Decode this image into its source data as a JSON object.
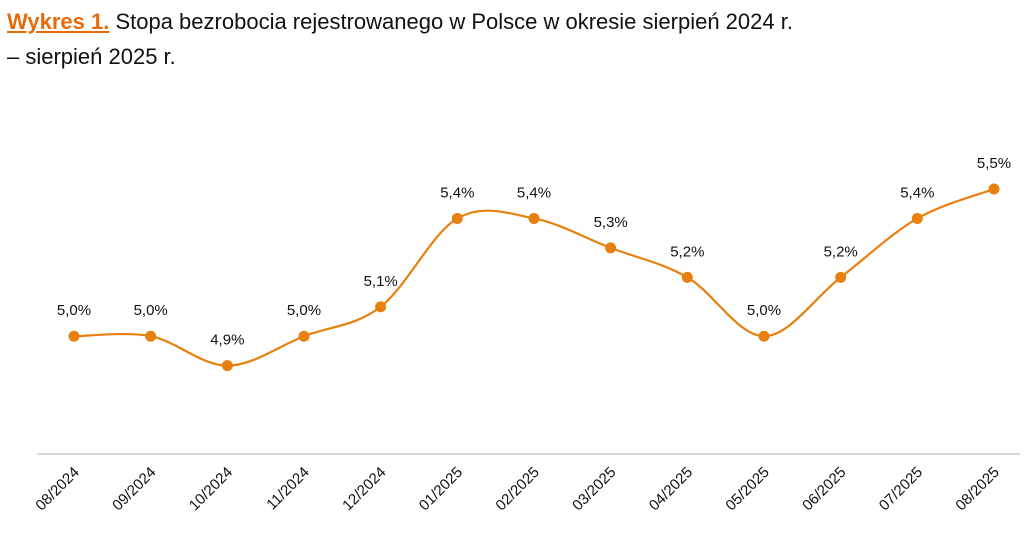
{
  "title": {
    "lead": "Wykres 1.",
    "line1": " Stopa bezrobocia rejestrowanego w Polsce w okresie sierpień 2024 r.",
    "line2": "– sierpień 2025 r."
  },
  "colors": {
    "series": "#e8800f",
    "accent": "#e46c0a",
    "axis": "#d9d9d9"
  },
  "chart_data": {
    "type": "line",
    "title": "Stopa bezrobocia rejestrowanego w Polsce w okresie sierpień 2024 r. – sierpień 2025 r.",
    "xlabel": "",
    "ylabel": "",
    "categories": [
      "08/2024",
      "09/2024",
      "10/2024",
      "11/2024",
      "12/2024",
      "01/2025",
      "02/2025",
      "03/2025",
      "04/2025",
      "05/2025",
      "06/2025",
      "07/2025",
      "08/2025"
    ],
    "values": [
      5.0,
      5.0,
      4.9,
      5.0,
      5.1,
      5.4,
      5.4,
      5.3,
      5.2,
      5.0,
      5.2,
      5.4,
      5.5
    ],
    "data_labels": [
      "5,0%",
      "5,0%",
      "4,9%",
      "5,0%",
      "5,1%",
      "5,4%",
      "5,4%",
      "5,3%",
      "5,2%",
      "5,0%",
      "5,2%",
      "5,4%",
      "5,5%"
    ],
    "ylim": [
      4.6,
      5.5
    ],
    "grid": false,
    "legend": "none"
  }
}
